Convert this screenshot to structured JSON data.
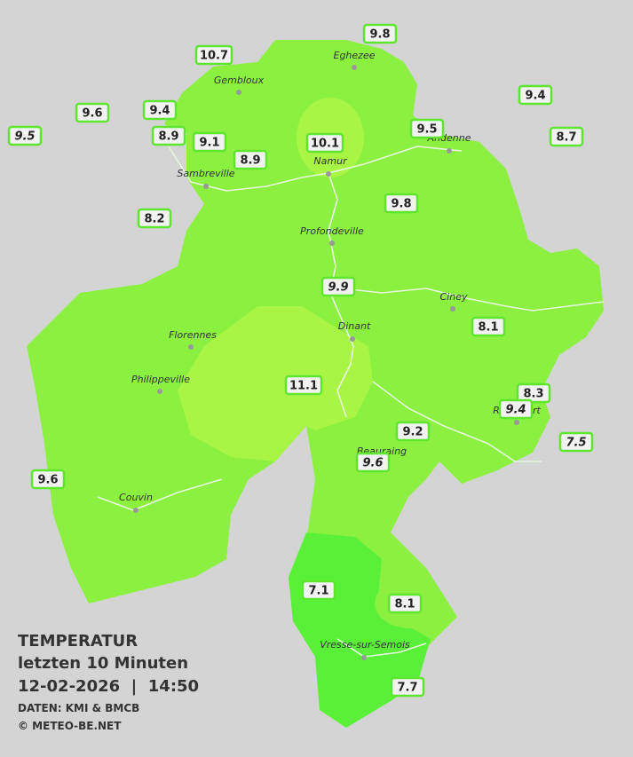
{
  "towns": [
    "Eghezee",
    "Gembloux",
    "Andenne",
    "Namur",
    "Sambreville",
    "Profondeville",
    "Ciney",
    "Dinant",
    "Florennes",
    "Philippeville",
    "Rochefort",
    "Beauraing",
    "Couvin",
    "Vresse-sur-Semois"
  ],
  "stations": [
    {
      "label": "10.7",
      "italic": false
    },
    {
      "label": "9.8",
      "italic": false
    },
    {
      "label": "9.4",
      "italic": false
    },
    {
      "label": "9.6",
      "italic": false
    },
    {
      "label": "9.4",
      "italic": false
    },
    {
      "label": "9.5",
      "italic": true
    },
    {
      "label": "8.9",
      "italic": false
    },
    {
      "label": "9.1",
      "italic": false
    },
    {
      "label": "10.1",
      "italic": false
    },
    {
      "label": "9.5",
      "italic": false
    },
    {
      "label": "8.7",
      "italic": false
    },
    {
      "label": "8.9",
      "italic": false
    },
    {
      "label": "9.8",
      "italic": false
    },
    {
      "label": "8.2",
      "italic": false
    },
    {
      "label": "9.9",
      "italic": true
    },
    {
      "label": "8.1",
      "italic": false
    },
    {
      "label": "11.1",
      "italic": false
    },
    {
      "label": "8.3",
      "italic": false
    },
    {
      "label": "9.4",
      "italic": true
    },
    {
      "label": "9.2",
      "italic": false
    },
    {
      "label": "9.6",
      "italic": true
    },
    {
      "label": "7.5",
      "italic": true
    },
    {
      "label": "9.6",
      "italic": false
    },
    {
      "label": "7.1",
      "italic": false
    },
    {
      "label": "8.1",
      "italic": false
    },
    {
      "label": "7.7",
      "italic": false
    }
  ],
  "legend": {
    "title": "TEMPERATUR",
    "period": "letzten 10 Minuten",
    "datetime": "12-02-2026  |  14:50",
    "source": "DATEN: KMI & BMCB",
    "copyright": "© METEO-BE.NET"
  }
}
